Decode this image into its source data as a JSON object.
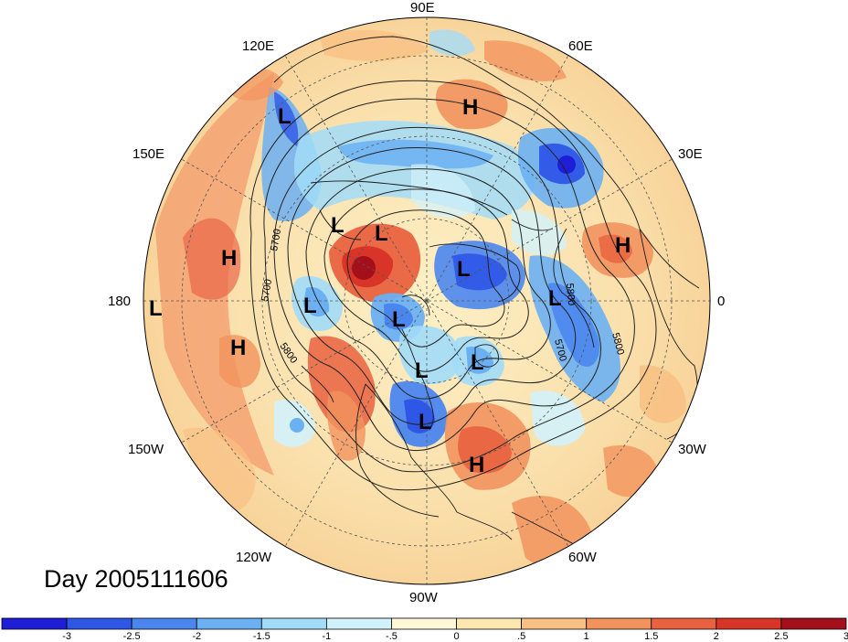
{
  "title": "",
  "date_label": "Day 2005111606",
  "longitude_labels": [
    "90E",
    "60E",
    "30E",
    "0",
    "30W",
    "60W",
    "90W",
    "120W",
    "150W",
    "180",
    "150E",
    "120E"
  ],
  "pressure_centers": [
    {
      "type": "L",
      "lon_label": "120E region"
    },
    {
      "type": "H",
      "lon_label": "75E region"
    },
    {
      "type": "L",
      "lon_label": "N Siberia"
    },
    {
      "type": "L",
      "lon_label": "N Siberia"
    },
    {
      "type": "H",
      "lon_label": "40E region"
    },
    {
      "type": "L",
      "lon_label": "Arctic Europe"
    },
    {
      "type": "L",
      "lon_label": "Scandinavia"
    },
    {
      "type": "H",
      "lon_label": "170E region"
    },
    {
      "type": "L",
      "lon_label": "180"
    },
    {
      "type": "L",
      "lon_label": "Bering"
    },
    {
      "type": "L",
      "lon_label": "Arctic"
    },
    {
      "type": "H",
      "lon_label": "155W region"
    },
    {
      "type": "L",
      "lon_label": "Greenland"
    },
    {
      "type": "L",
      "lon_label": "Canada"
    },
    {
      "type": "L",
      "lon_label": "Great Lakes"
    },
    {
      "type": "H",
      "lon_label": "Atlantic"
    }
  ],
  "contour_labels": [
    "5700",
    "5700",
    "5800",
    "5700",
    "5800",
    "5800"
  ],
  "colors": {
    "strong_blue": "#1b2fd6",
    "blue": "#4a8de8",
    "light_blue": "#a9dcf7",
    "pale_cyan": "#dff5fb",
    "pale_yellow": "#fdf3cf",
    "light_orange": "#f9d9a4",
    "orange": "#f5a273",
    "red_orange": "#e96749",
    "red": "#d8322d",
    "dark_red": "#a8101e"
  },
  "colorbar": {
    "ticks": [
      "-3",
      "-2.5",
      "-2",
      "-1.5",
      "-1",
      "-.5",
      "0",
      ".5",
      "1",
      "1.5",
      "2",
      "2.5",
      "3"
    ],
    "bins": [
      "#1e1ed6",
      "#2e57e8",
      "#4b86ee",
      "#6bb0f3",
      "#a2dcf8",
      "#d2f2fb",
      "#fff8d8",
      "#fde7b0",
      "#f9c084",
      "#f2935e",
      "#e9623f",
      "#d83528",
      "#a40f1c"
    ]
  }
}
